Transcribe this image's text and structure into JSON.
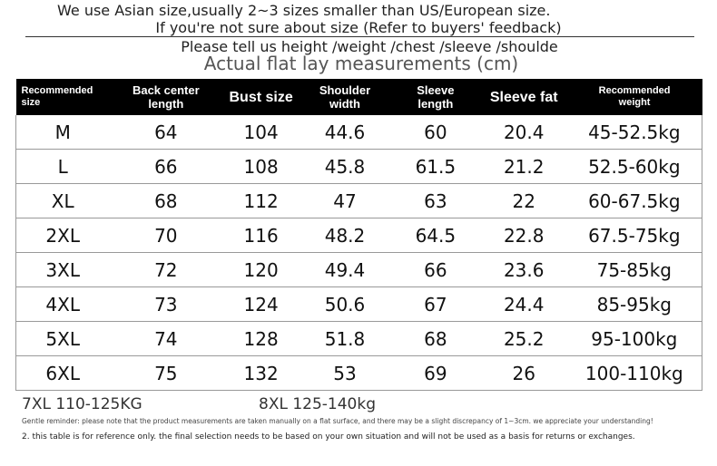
{
  "header": {
    "lines": [
      "We use Asian size,usually 2~3 sizes smaller than US/European size.",
      "If you're not sure about size (Refer to buyers' feedback)",
      "Please tell us height /weight /chest /sleeve /shoulde"
    ]
  },
  "table": {
    "title": "Actual flat lay measurements (cm)",
    "columns": [
      "Recommended\nsize",
      "Back center\nlength",
      "Bust size",
      "Shoulder\nwidth",
      "Sleeve\nlength",
      "Sleeve fat",
      "Recommended\nweight"
    ],
    "rows": [
      [
        "M",
        "64",
        "104",
        "44.6",
        "60",
        "20.4",
        "45-52.5kg"
      ],
      [
        "L",
        "66",
        "108",
        "45.8",
        "61.5",
        "21.2",
        "52.5-60kg"
      ],
      [
        "XL",
        "68",
        "112",
        "47",
        "63",
        "22",
        "60-67.5kg"
      ],
      [
        "2XL",
        "70",
        "116",
        "48.2",
        "64.5",
        "22.8",
        "67.5-75kg"
      ],
      [
        "3XL",
        "72",
        "120",
        "49.4",
        "66",
        "23.6",
        "75-85kg"
      ],
      [
        "4XL",
        "73",
        "124",
        "50.6",
        "67",
        "24.4",
        "85-95kg"
      ],
      [
        "5XL",
        "74",
        "128",
        "51.8",
        "68",
        "25.2",
        "95-100kg"
      ],
      [
        "6XL",
        "75",
        "132",
        "53",
        "69",
        "26",
        "100-110kg"
      ]
    ]
  },
  "footer": {
    "extra_sizes": [
      "7XL  110-125KG",
      "8XL  125-140kg"
    ],
    "notes": [
      "Gentle reminder: please note that the product measurements are taken manually on a flat surface, and there may be a slight discrepancy of 1~3cm. we appreciate your understanding!",
      "2. this table is for reference only. the final selection needs to be based on your own situation and will not be used as a basis for returns or exchanges."
    ]
  }
}
